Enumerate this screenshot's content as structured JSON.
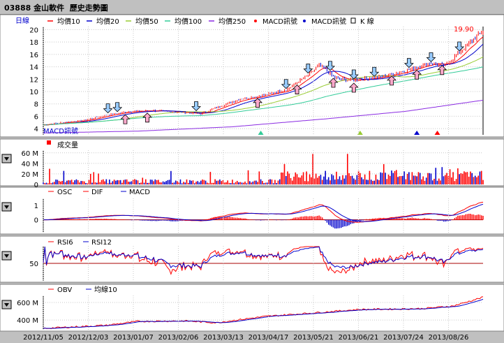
{
  "header": {
    "code": "03888",
    "name": "金山軟件",
    "title": "歷史走勢圖"
  },
  "colors": {
    "bg": "#c0c0c0",
    "panel": "#ffffff",
    "border": "#808080",
    "red": "#ff0000",
    "blue": "#0000cc",
    "ma50": "#99cc33",
    "ma100": "#33cc99",
    "ma250": "#8a2be2",
    "dark_red": "#aa0000",
    "signal_up": "#ffaacc",
    "signal_down": "#99ccff"
  },
  "main_panel": {
    "period_label": "日線",
    "legend": [
      {
        "name": "均價10",
        "color": "#ff0000",
        "marker": "line"
      },
      {
        "name": "均價20",
        "color": "#0000cc",
        "marker": "line"
      },
      {
        "name": "均價50",
        "color": "#99cc33",
        "marker": "line"
      },
      {
        "name": "均價100",
        "color": "#33cc99",
        "marker": "line"
      },
      {
        "name": "均價250",
        "color": "#8a2be2",
        "marker": "line"
      },
      {
        "name": "MACD訊號",
        "color": "#ff0000",
        "marker": "dot"
      },
      {
        "name": "MACD訊號",
        "color": "#0000cc",
        "marker": "dot"
      },
      {
        "name": "K 線",
        "color": "#000000",
        "marker": "box"
      }
    ],
    "overlay_label": "MACD訊號",
    "last_price_label": "19.90"
  },
  "volume_panel": {
    "legend": "成交量"
  },
  "macd_panel": {
    "legend": [
      "OSC",
      "DIF",
      "MACD"
    ]
  },
  "rsi_panel": {
    "legend": [
      "RSI6",
      "RSI12"
    ]
  },
  "obv_panel": {
    "legend": [
      "OBV",
      "均線10"
    ]
  },
  "chart_data": [
    {
      "type": "line",
      "name": "price",
      "y_ticks": [
        4,
        6,
        8,
        10,
        12,
        14,
        16,
        18,
        20
      ],
      "ylim": [
        3,
        20.5
      ],
      "x_ticks": [
        "2012/11/05",
        "2012/12/03",
        "2013/01/07",
        "2013/02/06",
        "2013/03/13",
        "2013/04/17",
        "2013/05/21",
        "2013/06/21",
        "2013/07/24",
        "2013/08/26"
      ],
      "key_points": [
        [
          0,
          4.6
        ],
        [
          12,
          5.0
        ],
        [
          25,
          5.3
        ],
        [
          40,
          6.2
        ],
        [
          55,
          6.8
        ],
        [
          70,
          6.9
        ],
        [
          90,
          6.6
        ],
        [
          100,
          6.4
        ],
        [
          112,
          7.6
        ],
        [
          125,
          8.8
        ],
        [
          140,
          9.4
        ],
        [
          155,
          10.4
        ],
        [
          170,
          13.0
        ],
        [
          175,
          14.3
        ],
        [
          185,
          12.2
        ],
        [
          195,
          11.8
        ],
        [
          205,
          12.1
        ],
        [
          215,
          12.4
        ],
        [
          230,
          13.4
        ],
        [
          245,
          14.6
        ],
        [
          255,
          14.2
        ],
        [
          265,
          16.6
        ],
        [
          275,
          18.9
        ],
        [
          279,
          19.9
        ]
      ],
      "last_value": 19.9,
      "ma250_points": [
        [
          0,
          3.3
        ],
        [
          60,
          3.6
        ],
        [
          120,
          4.3
        ],
        [
          180,
          5.6
        ],
        [
          230,
          6.8
        ],
        [
          279,
          8.6
        ]
      ],
      "macd_buy_signals": [
        52,
        66,
        136,
        161,
        184,
        197,
        221,
        237,
        253
      ],
      "macd_sell_signals": [
        41,
        47,
        97,
        154,
        168,
        182,
        197,
        210,
        232,
        246,
        264
      ],
      "triangles": [
        {
          "x": 138,
          "color": "#33cc99"
        },
        {
          "x": 201,
          "color": "#99cc33"
        },
        {
          "x": 237,
          "color": "#0000cc"
        },
        {
          "x": 250,
          "color": "#ff0000"
        }
      ]
    },
    {
      "type": "bar",
      "name": "成交量",
      "y_ticks": [
        "0",
        "20 M",
        "40 M",
        "60 M"
      ],
      "ylim": [
        0,
        65
      ]
    },
    {
      "type": "line",
      "name": "MACD",
      "y_ticks": [
        "0",
        "1"
      ],
      "ylim": [
        -0.9,
        1.5
      ]
    },
    {
      "type": "line",
      "name": "RSI",
      "y_ticks": [
        "50"
      ],
      "ylim": [
        0,
        100
      ]
    },
    {
      "type": "line",
      "name": "OBV",
      "y_ticks": [
        "400 M",
        "600 M"
      ],
      "ylim": [
        290,
        680
      ]
    }
  ]
}
